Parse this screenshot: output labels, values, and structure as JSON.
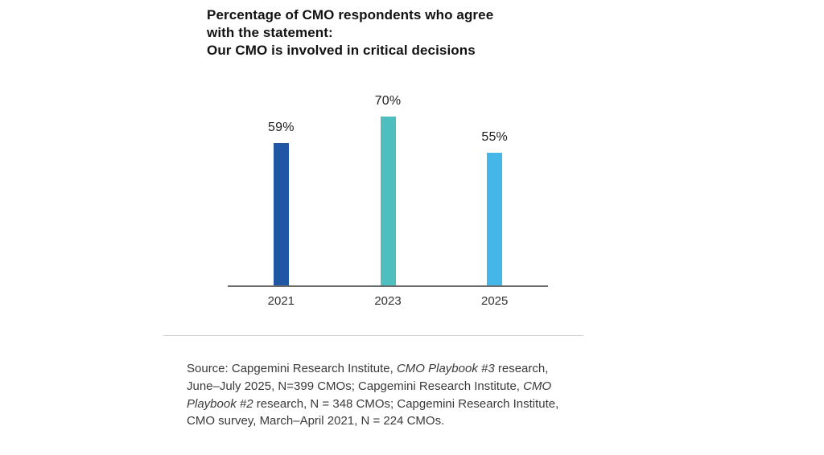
{
  "chart_data": {
    "type": "bar",
    "title": "Percentage of CMO respondents who agree\nwith the statement:\nOur CMO is involved in critical decisions",
    "categories": [
      "2021",
      "2023",
      "2025"
    ],
    "values": [
      59,
      70,
      55
    ],
    "value_labels": [
      "59%",
      "70%",
      "55%"
    ],
    "unit": "%",
    "ylim": [
      0,
      80
    ],
    "grid": false,
    "legend": false,
    "bar_colors": [
      "#2156A5",
      "#4FBEBF",
      "#44B6E8"
    ],
    "axis_line_color": "#6B6B6B"
  },
  "source": {
    "segments": [
      {
        "text": "Source: Capgemini Research Institute, ",
        "italic": false
      },
      {
        "text": "CMO Playbook #3",
        "italic": true
      },
      {
        "text": " research, June–July 2025, N=399 CMOs; Capgemini Research Institute, ",
        "italic": false
      },
      {
        "text": "CMO Playbook #2",
        "italic": true
      },
      {
        "text": " research, N = 348 CMOs; Capgemini Research Institute, CMO survey, March–April 2021, N = 224 CMOs.",
        "italic": false
      }
    ]
  }
}
